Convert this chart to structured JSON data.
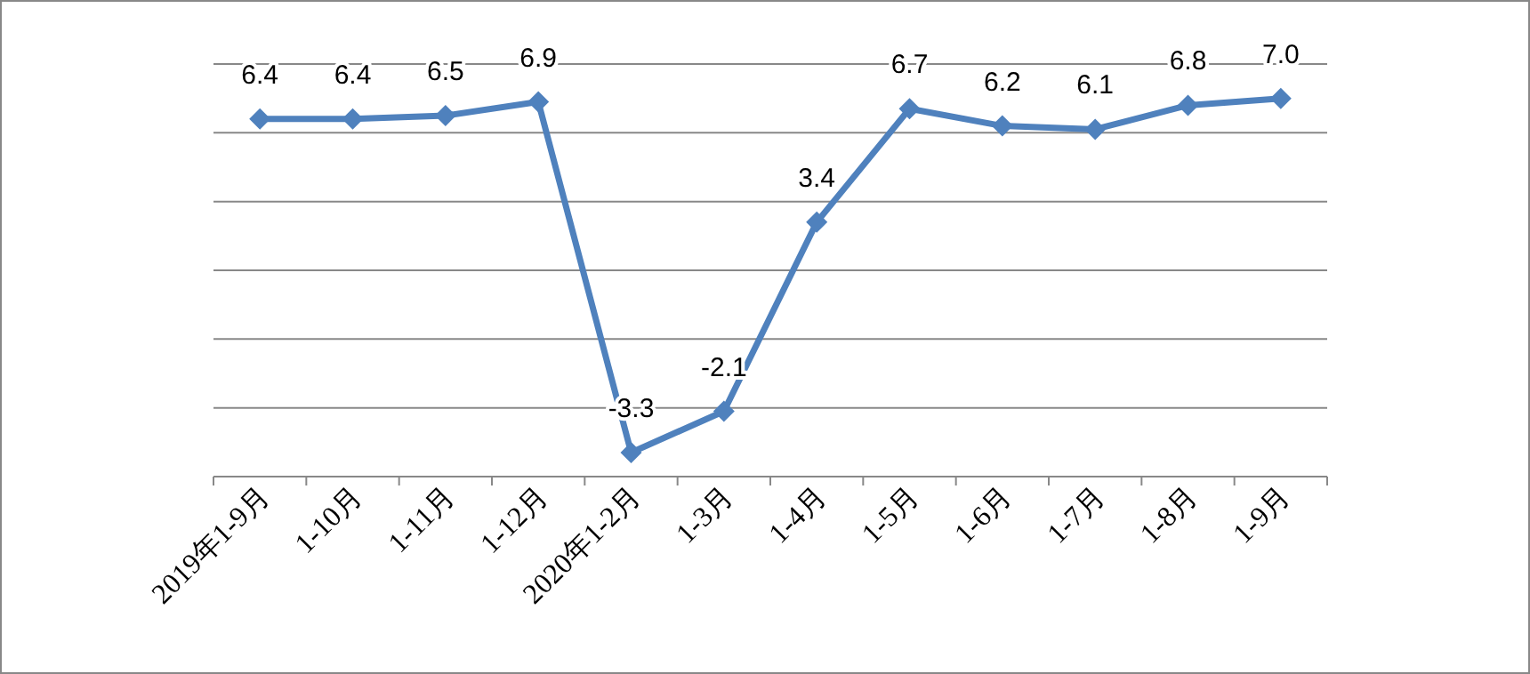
{
  "chart_data": {
    "type": "line",
    "categories": [
      "2019年1-9月",
      "1-10月",
      "1-11月",
      "1-12月",
      "2020年1-2月",
      "1-3月",
      "1-4月",
      "1-5月",
      "1-6月",
      "1-7月",
      "1-8月",
      "1-9月"
    ],
    "series": [
      {
        "color": "#4f81bd",
        "values": [
          6.4,
          6.4,
          6.5,
          6.9,
          -3.3,
          -2.1,
          3.4,
          6.7,
          6.2,
          6.1,
          6.8,
          7.0
        ],
        "value_labels": [
          "6.4",
          "6.4",
          "6.5",
          "6.9",
          "-3.3",
          "-2.1",
          "3.4",
          "6.7",
          "6.2",
          "6.1",
          "6.8",
          "7.0"
        ]
      }
    ],
    "ylim": [
      -4,
      8
    ],
    "yticks": [
      {
        "value": -4,
        "label": null
      },
      {
        "value": -2,
        "label": null
      },
      {
        "value": 0,
        "label": null
      },
      {
        "value": 2,
        "label": null
      },
      {
        "value": 4,
        "label": null
      },
      {
        "value": 6,
        "label": null
      },
      {
        "value": 8,
        "label": null
      }
    ],
    "tick_labels": "x",
    "grid": "y",
    "marker": "diamond",
    "line_style": "solid"
  }
}
